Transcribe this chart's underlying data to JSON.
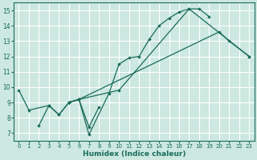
{
  "xlabel": "Humidex (Indice chaleur)",
  "xlim": [
    -0.5,
    23.5
  ],
  "ylim": [
    6.5,
    15.5
  ],
  "xticks": [
    0,
    1,
    2,
    3,
    4,
    5,
    6,
    7,
    8,
    9,
    10,
    11,
    12,
    13,
    14,
    15,
    16,
    17,
    18,
    19,
    20,
    21,
    22,
    23
  ],
  "yticks": [
    7,
    8,
    9,
    10,
    11,
    12,
    13,
    14,
    15
  ],
  "bg_color": "#cce8e0",
  "grid_color": "#ffffff",
  "line_color": "#1a6b5a",
  "series": [
    {
      "x": [
        0,
        1,
        3,
        4,
        5,
        6,
        7,
        9,
        10,
        11,
        12,
        13,
        14,
        15,
        16,
        17,
        18,
        19
      ],
      "y": [
        9.8,
        8.5,
        8.8,
        8.2,
        9.0,
        9.2,
        6.9,
        9.6,
        11.5,
        11.9,
        12.0,
        13.1,
        14.0,
        14.5,
        14.9,
        15.1,
        15.1,
        14.6
      ]
    },
    {
      "x": [
        5,
        6,
        10,
        17,
        23
      ],
      "y": [
        9.0,
        9.2,
        9.8,
        15.1,
        12.0
      ]
    },
    {
      "x": [
        5,
        6,
        20,
        21,
        23
      ],
      "y": [
        9.0,
        9.2,
        13.6,
        13.0,
        12.0
      ]
    },
    {
      "comment": "short line with dip: 2,7.5 to 7,7.4 to 8,8.7 to 9,9.6",
      "x": [
        2,
        3,
        4,
        5,
        6,
        7,
        8
      ],
      "y": [
        7.5,
        8.8,
        8.2,
        9.0,
        9.2,
        7.4,
        8.7
      ]
    }
  ]
}
